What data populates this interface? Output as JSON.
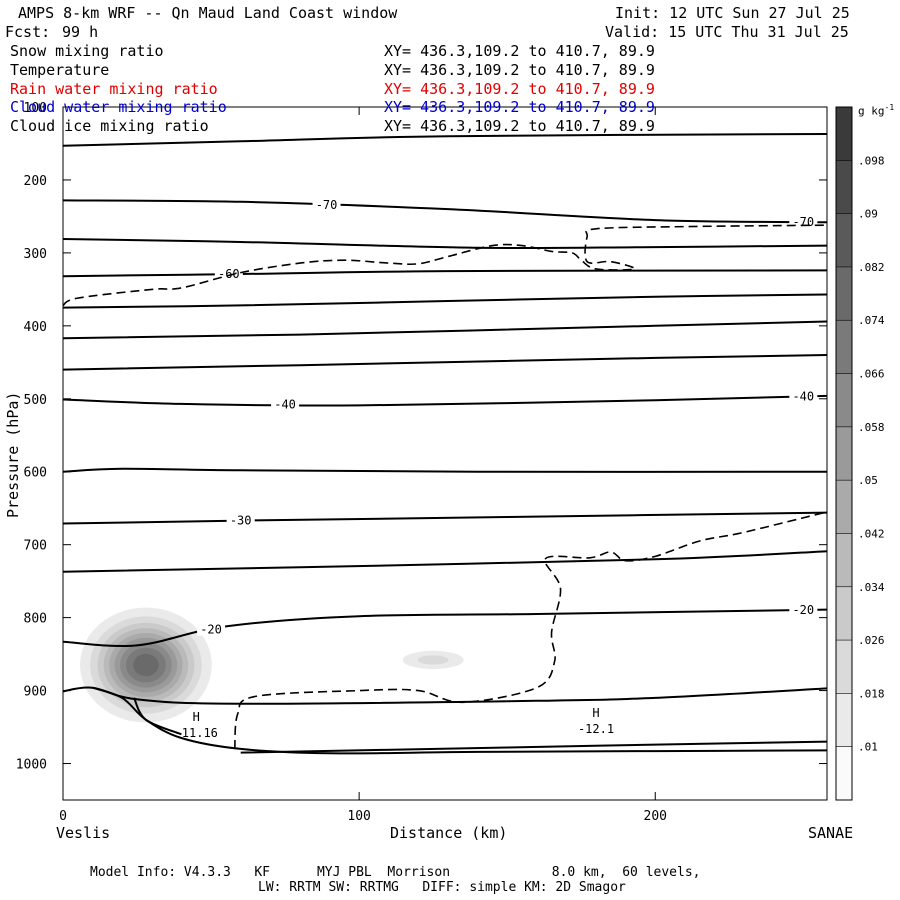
{
  "header": {
    "title": "AMPS 8-km WRF -- Qn Maud Land Coast window",
    "fcst_label": "Fcst:",
    "fcst_value": "99 h",
    "init": "Init: 12 UTC Sun 27 Jul 25",
    "valid": "Valid: 15 UTC Thu 31 Jul 25"
  },
  "fields": [
    {
      "name": "Snow mixing ratio",
      "xy": "XY= 436.3,109.2 to 410.7, 89.9",
      "color": "#000000"
    },
    {
      "name": "Temperature",
      "xy": "XY= 436.3,109.2 to 410.7, 89.9",
      "color": "#000000"
    },
    {
      "name": "Rain water mixing ratio",
      "xy": "XY= 436.3,109.2 to 410.7, 89.9",
      "color": "#e00000"
    },
    {
      "name": "Cloud water mixing ratio",
      "xy": "XY= 436.3,109.2 to 410.7, 89.9",
      "color": "#0000cc"
    },
    {
      "name": "Cloud ice mixing ratio",
      "xy": "XY= 436.3,109.2 to 410.7, 89.9",
      "color": "#000000"
    }
  ],
  "footer": {
    "line1": "Model Info: V4.3.3   KF      MYJ PBL  Morrison             8.0 km,  60 levels,",
    "line2": "LW: RRTM SW: RRTMG   DIFF: simple KM: 2D Smagor"
  },
  "chart_data": {
    "type": "cross-section",
    "xlabel": "Distance (km)",
    "ylabel": "Pressure (hPa)",
    "xlim": [
      0,
      258
    ],
    "ylim": [
      1050,
      100
    ],
    "x_ticks": [
      0,
      100,
      200
    ],
    "y_ticks": [
      100,
      200,
      300,
      400,
      500,
      600,
      700,
      800,
      900,
      1000
    ],
    "left_endpoint": "Veslis",
    "right_endpoint": "SANAE",
    "colorbar": {
      "unit_base": "g kg",
      "unit_exp": "-1",
      "ticks": [
        ".01",
        ".018",
        ".026",
        ".034",
        ".042",
        ".05",
        ".058",
        ".066",
        ".074",
        ".082",
        ".09",
        ".098"
      ],
      "levels": [
        0.01,
        0.018,
        0.026,
        0.034,
        0.042,
        0.05,
        0.058,
        0.066,
        0.074,
        0.082,
        0.09,
        0.098
      ],
      "vmin": 0.006,
      "vmax": 0.106
    },
    "snow_blobs": [
      {
        "x": 28,
        "p": 865,
        "x_spread": 24,
        "p_spread": 85,
        "peak": 0.08
      },
      {
        "x": 125,
        "p": 858,
        "x_spread": 18,
        "p_spread": 22,
        "peak": 0.022
      }
    ],
    "temperature_contours": [
      {
        "points": [
          [
            0,
            153
          ],
          [
            60,
            147
          ],
          [
            130,
            140
          ],
          [
            258,
            137
          ]
        ]
      },
      {
        "points": [
          [
            0,
            228
          ],
          [
            60,
            230
          ],
          [
            130,
            240
          ],
          [
            200,
            255
          ],
          [
            258,
            258
          ]
        ],
        "label": "-70",
        "label_x": 89,
        "label2": "-70",
        "label2_x": 250
      },
      {
        "points": [
          [
            0,
            281
          ],
          [
            60,
            285
          ],
          [
            140,
            293
          ],
          [
            200,
            292
          ],
          [
            258,
            290
          ]
        ]
      },
      {
        "points": [
          [
            0,
            332
          ],
          [
            60,
            329
          ],
          [
            130,
            325
          ],
          [
            258,
            324
          ]
        ],
        "label": "-60",
        "label_x": 56
      },
      {
        "points": [
          [
            0,
            375
          ],
          [
            60,
            372
          ],
          [
            130,
            366
          ],
          [
            200,
            360
          ],
          [
            258,
            357
          ]
        ]
      },
      {
        "points": [
          [
            0,
            417
          ],
          [
            80,
            412
          ],
          [
            200,
            400
          ],
          [
            258,
            394
          ]
        ]
      },
      {
        "points": [
          [
            0,
            460
          ],
          [
            80,
            454
          ],
          [
            200,
            444
          ],
          [
            258,
            440
          ]
        ]
      },
      {
        "points": [
          [
            0,
            501
          ],
          [
            40,
            507
          ],
          [
            100,
            509
          ],
          [
            200,
            502
          ],
          [
            258,
            496
          ]
        ],
        "label": "-40",
        "label_x": 75,
        "label2": "-40",
        "label2_x": 250
      },
      {
        "points": [
          [
            0,
            600
          ],
          [
            20,
            596
          ],
          [
            60,
            598
          ],
          [
            140,
            600
          ],
          [
            258,
            600
          ]
        ]
      },
      {
        "points": [
          [
            0,
            671
          ],
          [
            60,
            667
          ],
          [
            150,
            662
          ],
          [
            258,
            656
          ]
        ],
        "label": "-30",
        "label_x": 60
      },
      {
        "points": [
          [
            0,
            737
          ],
          [
            80,
            731
          ],
          [
            200,
            720
          ],
          [
            258,
            709
          ]
        ]
      },
      {
        "points": [
          [
            0,
            833
          ],
          [
            25,
            838
          ],
          [
            55,
            812
          ],
          [
            100,
            798
          ],
          [
            160,
            795
          ],
          [
            258,
            789
          ]
        ],
        "label": "-20",
        "label_x": 50,
        "label2": "-20",
        "label2_x": 250
      },
      {
        "points": [
          [
            0,
            901
          ],
          [
            10,
            896
          ],
          [
            25,
            912
          ],
          [
            60,
            918
          ],
          [
            160,
            914
          ],
          [
            200,
            910
          ],
          [
            258,
            897
          ]
        ]
      },
      {
        "points": [
          [
            10,
            896
          ],
          [
            20,
            910
          ],
          [
            28,
            940
          ],
          [
            40,
            965
          ],
          [
            60,
            980
          ],
          [
            90,
            986
          ],
          [
            140,
            984
          ],
          [
            200,
            983
          ],
          [
            258,
            982
          ]
        ]
      },
      {
        "points": [
          [
            24,
            910
          ],
          [
            28,
            940
          ],
          [
            40,
            960
          ]
        ]
      },
      {
        "points": [
          [
            60,
            985
          ],
          [
            150,
            978
          ],
          [
            200,
            974
          ],
          [
            258,
            970
          ]
        ]
      }
    ],
    "temperature_highs": [
      {
        "x": 45,
        "p": 958,
        "label": "-11.16"
      },
      {
        "x": 180,
        "p": 953,
        "label": "-12.1"
      }
    ],
    "ice_contours": [
      {
        "points": [
          [
            0,
            372
          ],
          [
            5,
            362
          ],
          [
            30,
            350
          ],
          [
            40,
            348
          ],
          [
            60,
            327
          ],
          [
            80,
            314
          ],
          [
            95,
            310
          ],
          [
            110,
            314
          ],
          [
            120,
            315
          ],
          [
            130,
            305
          ],
          [
            145,
            290
          ],
          [
            155,
            290
          ],
          [
            165,
            298
          ],
          [
            172,
            300
          ],
          [
            175,
            310
          ],
          [
            180,
            322
          ],
          [
            193,
            322
          ],
          [
            185,
            312
          ],
          [
            177,
            312
          ],
          [
            177,
            278
          ],
          [
            180,
            267
          ],
          [
            210,
            264
          ],
          [
            258,
            262
          ]
        ]
      },
      {
        "points": [
          [
            58,
            980
          ],
          [
            59,
            932
          ],
          [
            65,
            908
          ],
          [
            100,
            900
          ],
          [
            120,
            900
          ],
          [
            135,
            916
          ],
          [
            160,
            896
          ],
          [
            166,
            860
          ],
          [
            165,
            820
          ],
          [
            168,
            760
          ],
          [
            163,
            719
          ],
          [
            178,
            718
          ],
          [
            185,
            710
          ],
          [
            190,
            722
          ],
          [
            200,
            716
          ],
          [
            215,
            695
          ],
          [
            230,
            683
          ],
          [
            258,
            655
          ]
        ]
      }
    ]
  }
}
